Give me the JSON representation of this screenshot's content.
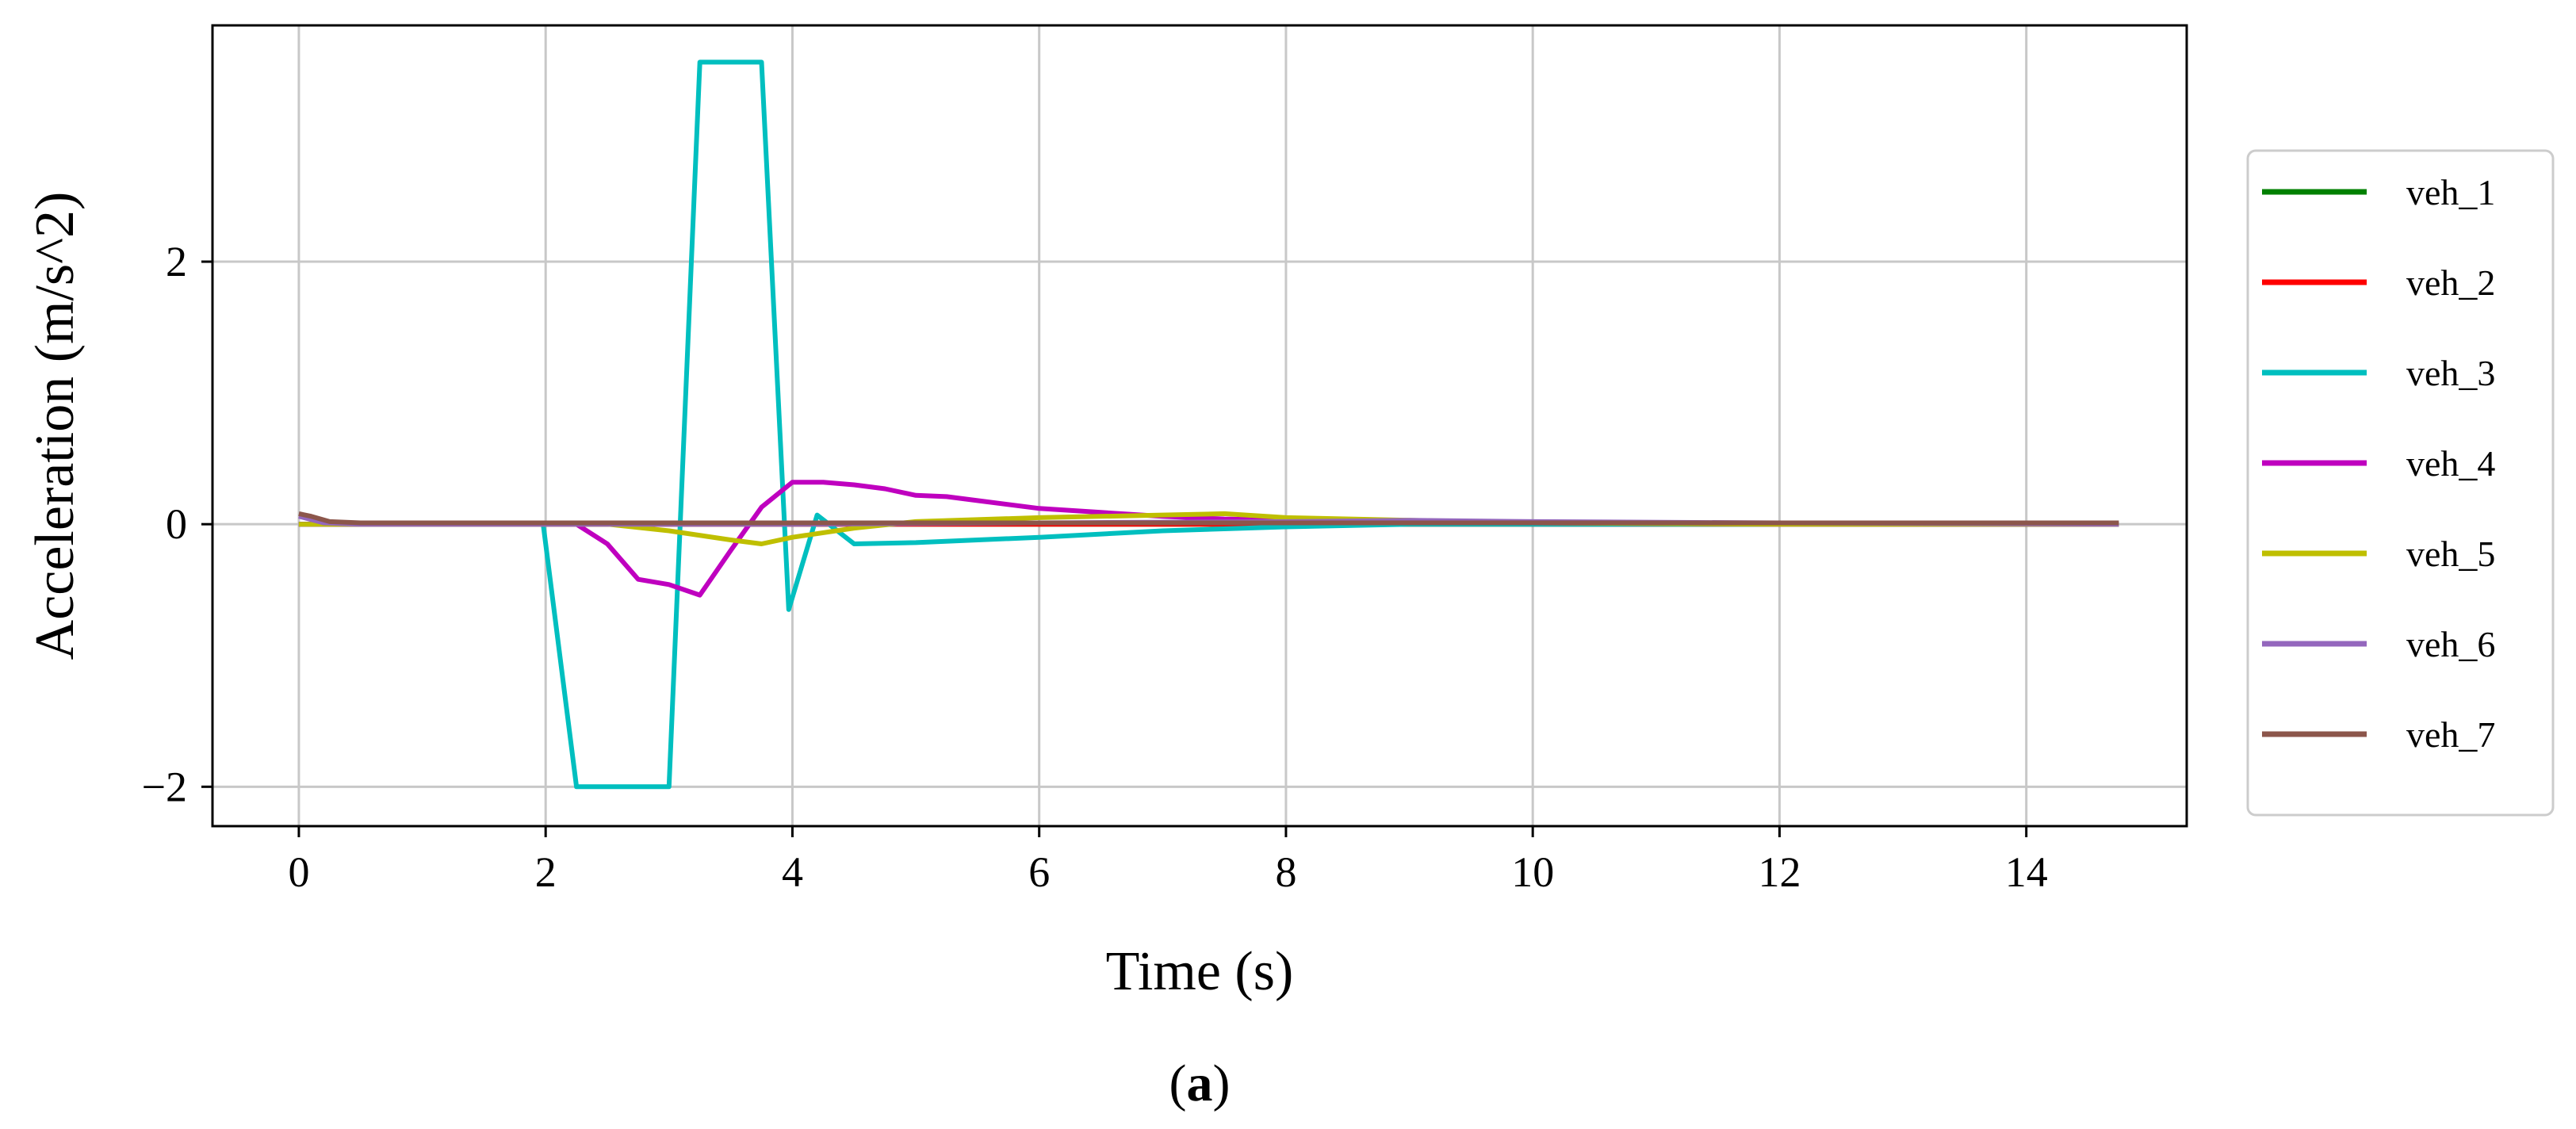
{
  "caption": {
    "prefix": "(",
    "letter": "a",
    "suffix": ")"
  },
  "chart_data": {
    "type": "line",
    "xlabel": "Time (s)",
    "ylabel": "Acceleration (m/s^2)",
    "xlim": [
      -0.7,
      15.3
    ],
    "ylim": [
      -2.3,
      3.8
    ],
    "xticks": [
      0,
      2,
      4,
      6,
      8,
      10,
      12,
      14
    ],
    "yticks": [
      -2,
      0,
      2
    ],
    "xtick_labels": [
      "0",
      "2",
      "4",
      "6",
      "8",
      "10",
      "12",
      "14"
    ],
    "ytick_labels": [
      "−2",
      "0",
      "2"
    ],
    "grid": true,
    "legend_position": "right",
    "series": [
      {
        "name": "veh_1",
        "color": "#008000",
        "x": [
          0,
          14.75
        ],
        "y": [
          0,
          0
        ]
      },
      {
        "name": "veh_2",
        "color": "#ff0000",
        "x": [
          0,
          14.75
        ],
        "y": [
          0,
          0
        ]
      },
      {
        "name": "veh_3",
        "color": "#00bfbf",
        "x": [
          0,
          1.98,
          2.25,
          3.0,
          3.25,
          3.75,
          3.97,
          4.2,
          4.5,
          5.0,
          6.0,
          7.0,
          8.0,
          9.0,
          10.0,
          12.0,
          14.75
        ],
        "y": [
          0,
          0,
          -2.0,
          -2.0,
          3.52,
          3.52,
          -0.65,
          0.07,
          -0.15,
          -0.14,
          -0.1,
          -0.05,
          -0.02,
          0.0,
          0.0,
          0.0,
          0.0
        ]
      },
      {
        "name": "veh_4",
        "color": "#bf00bf",
        "x": [
          0,
          2.25,
          2.5,
          2.75,
          3.0,
          3.25,
          3.5,
          3.75,
          4.0,
          4.25,
          4.5,
          4.75,
          5.0,
          5.25,
          5.5,
          6.0,
          6.5,
          7.0,
          7.5,
          8.0,
          9.0,
          10.0,
          12.0,
          14.75
        ],
        "y": [
          0,
          0,
          -0.15,
          -0.42,
          -0.46,
          -0.54,
          -0.2,
          0.13,
          0.32,
          0.32,
          0.3,
          0.27,
          0.22,
          0.21,
          0.18,
          0.12,
          0.09,
          0.06,
          0.04,
          0.03,
          0.02,
          0.01,
          0.0,
          0.0
        ]
      },
      {
        "name": "veh_5",
        "color": "#bfbf00",
        "x": [
          0,
          2.5,
          3.0,
          3.5,
          3.75,
          4.0,
          4.5,
          5.0,
          6.0,
          7.0,
          7.5,
          8.0,
          9.0,
          10.0,
          12.0,
          14.75
        ],
        "y": [
          0,
          0,
          -0.05,
          -0.12,
          -0.15,
          -0.1,
          -0.03,
          0.02,
          0.05,
          0.07,
          0.08,
          0.05,
          0.03,
          0.01,
          0.0,
          0.0
        ]
      },
      {
        "name": "veh_6",
        "color": "#9467bd",
        "x": [
          0,
          0.2,
          0.5,
          4.0,
          6.0,
          8.0,
          9.0,
          10.0,
          12.0,
          14.75
        ],
        "y": [
          0.06,
          0.01,
          0.0,
          0.0,
          0.01,
          0.02,
          0.03,
          0.02,
          0.01,
          0.0
        ]
      },
      {
        "name": "veh_7",
        "color": "#8c564b",
        "x": [
          0,
          0.1,
          0.25,
          0.5,
          1.0,
          4.0,
          8.0,
          12.0,
          14.75
        ],
        "y": [
          0.08,
          0.06,
          0.02,
          0.01,
          0.01,
          0.01,
          0.01,
          0.01,
          0.01
        ]
      }
    ]
  }
}
